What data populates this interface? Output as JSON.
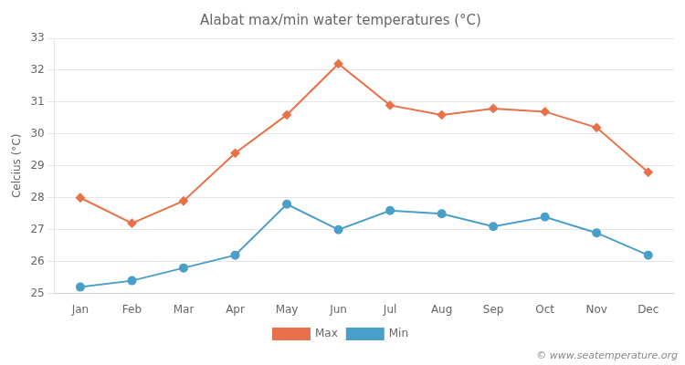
{
  "chart_data": {
    "type": "line",
    "title": "Alabat max/min water temperatures (°C)",
    "y_label": "Celcius (°C)",
    "categories": [
      "Jan",
      "Feb",
      "Mar",
      "Apr",
      "May",
      "Jun",
      "Jul",
      "Aug",
      "Sep",
      "Oct",
      "Nov",
      "Dec"
    ],
    "series": [
      {
        "name": "Max",
        "color": "#e8714a",
        "marker": "diamond",
        "values": [
          28.0,
          27.2,
          27.9,
          29.4,
          30.6,
          32.2,
          30.9,
          30.6,
          30.8,
          30.7,
          30.2,
          28.8
        ]
      },
      {
        "name": "Min",
        "color": "#4a9fc8",
        "marker": "circle",
        "values": [
          25.2,
          25.4,
          25.8,
          26.2,
          27.8,
          27.0,
          27.6,
          27.5,
          27.1,
          27.4,
          26.9,
          26.2
        ]
      }
    ],
    "ylim": [
      25,
      33
    ],
    "yticks": [
      25,
      26,
      27,
      28,
      29,
      30,
      31,
      32,
      33
    ],
    "grid": "y",
    "legend": "bottom",
    "annotations": [
      "© www.seatemperature.org"
    ]
  }
}
